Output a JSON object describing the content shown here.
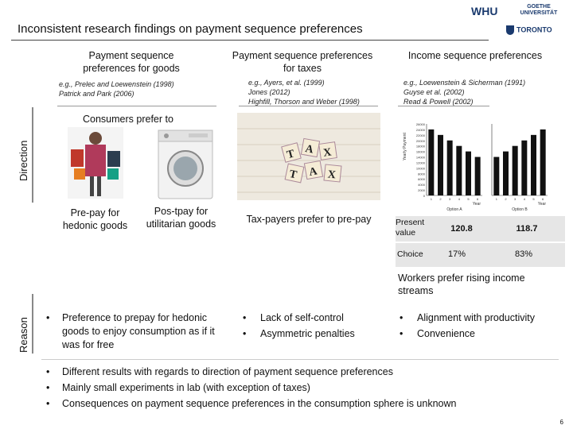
{
  "header": {
    "title": "Inconsistent research findings on payment sequence preferences",
    "logo_whu": "WHU",
    "logo_goethe": "GOETHE UNIVERSITÄT",
    "logo_toronto": "TORONTO"
  },
  "columns": {
    "goods": {
      "heading": "Payment sequence preferences for goods",
      "cite1": "e.g., Prelec and Loewenstein (1998)",
      "cite2": "Patrick and Park (2006)",
      "sub_label": "Consumers prefer to",
      "label_prepay": "Pre-pay for hedonic goods",
      "label_postpay": "Pos-tpay for utilitarian goods"
    },
    "taxes": {
      "heading": "Payment sequence preferences for taxes",
      "cite1": "e.g., Ayers, et al. (1999)",
      "cite2": "Jones (2012)",
      "cite3": "Highfill, Thorson and Weber (1998)",
      "label": "Tax-payers prefer to pre-pay"
    },
    "income": {
      "heading": "Income sequence preferences",
      "cite1": "e.g., Loewenstein & Sicherman (1991)",
      "cite2": "Guyse et al. (2002)",
      "cite3": "Read & Powell (2002)",
      "label": "Workers prefer rising income streams",
      "table": {
        "row1_label": "Present value",
        "row1_a": "120.8",
        "row1_b": "118.7",
        "row2_label": "Choice",
        "row2_a": "17%",
        "row2_b": "83%"
      }
    }
  },
  "side_labels": {
    "direction": "Direction",
    "reason": "Reason"
  },
  "reasons": {
    "goods": "Preference to prepay for hedonic goods to enjoy consumption as if it was for free",
    "taxes": [
      "Lack of self-control",
      "Asymmetric penalties"
    ],
    "income": [
      "Alignment with productivity",
      "Convenience"
    ]
  },
  "summary": [
    "Different results with regards to direction of payment sequence preferences",
    "Mainly small experiments in lab (with exception of taxes)",
    "Consequences on payment sequence preferences in the consumption sphere is unknown"
  ],
  "bullet": "•",
  "page_number": "6",
  "chart_data": {
    "type": "bar",
    "panels": [
      {
        "name": "Option A",
        "categories": [
          "1",
          "2",
          "3",
          "4",
          "5",
          "6"
        ],
        "values": [
          24000,
          22000,
          20000,
          18000,
          16000,
          14000
        ]
      },
      {
        "name": "Option B",
        "categories": [
          "1",
          "2",
          "3",
          "4",
          "5",
          "6"
        ],
        "values": [
          14000,
          16000,
          18000,
          20000,
          22000,
          24000
        ]
      }
    ],
    "ylabel": "Yearly Payment",
    "xlabel": "Year",
    "yticks": [
      "0",
      "2000",
      "4000",
      "6000",
      "8000",
      "10000",
      "12000",
      "14000",
      "16000",
      "18000",
      "20000",
      "22000",
      "24000",
      "26000"
    ],
    "ylim": [
      0,
      26000
    ]
  }
}
